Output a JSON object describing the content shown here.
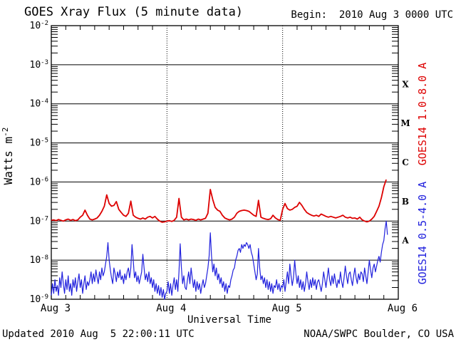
{
  "chart_data": {
    "type": "line",
    "title": "GOES Xray Flux (5 minute data)",
    "begin_label": "Begin:  2010 Aug 3 0000 UTC",
    "xlabel": "Universal Time",
    "ylabel": {
      "text": "Watts m",
      "exponent": "-2"
    },
    "grid": {
      "horizontal": "solid-per-decade",
      "vertical": "dotted-per-day"
    },
    "x_axis": {
      "start_hour": 0,
      "end_hour": 72,
      "tick_hours": [
        0,
        24,
        48,
        72
      ],
      "tick_labels": [
        "Aug 3",
        "Aug 4",
        "Aug 5",
        "Aug 6"
      ],
      "minor_tick_step_hours": 3,
      "day_gridline_hours": [
        24,
        48
      ]
    },
    "y_axis": {
      "base_label": "10",
      "log_min_exp": -9,
      "log_max_exp": -2,
      "tick_exponents": [
        -2,
        -3,
        -4,
        -5,
        -6,
        -7,
        -8,
        -9
      ]
    },
    "flare_class_labels": [
      {
        "label": "X",
        "band_exp": [
          -4,
          -3
        ]
      },
      {
        "label": "M",
        "band_exp": [
          -5,
          -4
        ]
      },
      {
        "label": "C",
        "band_exp": [
          -6,
          -5
        ]
      },
      {
        "label": "B",
        "band_exp": [
          -7,
          -6
        ]
      },
      {
        "label": "A",
        "band_exp": [
          -8,
          -7
        ]
      }
    ],
    "series": [
      {
        "name": "GOES14 1.0-8.0 A",
        "color": "#dd0000",
        "stroke_width": 1.8,
        "t_start_hours": 0,
        "t_step_hours": 0.5,
        "values_are": "log10(Watts m^-2)",
        "log10_flux": [
          -6.98,
          -6.97,
          -6.99,
          -6.96,
          -6.98,
          -7.0,
          -6.97,
          -6.95,
          -6.98,
          -6.96,
          -6.99,
          -6.97,
          -6.9,
          -6.85,
          -6.72,
          -6.85,
          -6.95,
          -6.97,
          -6.95,
          -6.92,
          -6.85,
          -6.75,
          -6.62,
          -6.33,
          -6.55,
          -6.62,
          -6.6,
          -6.5,
          -6.7,
          -6.78,
          -6.85,
          -6.88,
          -6.8,
          -6.49,
          -6.85,
          -6.9,
          -6.93,
          -6.95,
          -6.92,
          -6.95,
          -6.9,
          -6.88,
          -6.92,
          -6.88,
          -6.95,
          -7.0,
          -7.03,
          -7.02,
          -7.0,
          -6.99,
          -7.01,
          -6.98,
          -6.9,
          -6.42,
          -6.9,
          -6.97,
          -6.95,
          -6.97,
          -6.95,
          -6.96,
          -6.98,
          -6.95,
          -6.97,
          -6.95,
          -6.93,
          -6.8,
          -6.19,
          -6.45,
          -6.65,
          -6.72,
          -6.75,
          -6.85,
          -6.92,
          -6.95,
          -6.97,
          -6.95,
          -6.9,
          -6.8,
          -6.75,
          -6.73,
          -6.72,
          -6.73,
          -6.75,
          -6.8,
          -6.85,
          -6.88,
          -6.47,
          -6.9,
          -6.93,
          -6.95,
          -6.96,
          -6.94,
          -6.85,
          -6.92,
          -6.96,
          -6.98,
          -6.7,
          -6.55,
          -6.68,
          -6.72,
          -6.7,
          -6.65,
          -6.62,
          -6.52,
          -6.6,
          -6.7,
          -6.78,
          -6.82,
          -6.85,
          -6.87,
          -6.85,
          -6.88,
          -6.82,
          -6.85,
          -6.88,
          -6.9,
          -6.88,
          -6.9,
          -6.92,
          -6.9,
          -6.88,
          -6.85,
          -6.9,
          -6.92,
          -6.9,
          -6.93,
          -6.92,
          -6.95,
          -6.9,
          -6.97,
          -7.0,
          -7.02,
          -7.0,
          -6.95,
          -6.88,
          -6.75,
          -6.62,
          -6.4,
          -6.12,
          -5.94
        ]
      },
      {
        "name": "GOES14 0.5-4.0 A",
        "color": "#2121dd",
        "stroke_width": 1.2,
        "t_start_hours": 0,
        "t_step_hours": 0.25,
        "values_are": "log10(Watts m^-2)",
        "log10_flux": [
          -8.9,
          -8.6,
          -8.85,
          -8.5,
          -8.8,
          -8.65,
          -8.9,
          -8.45,
          -8.7,
          -8.3,
          -8.6,
          -8.85,
          -8.5,
          -8.75,
          -8.4,
          -8.8,
          -8.6,
          -8.9,
          -8.5,
          -8.7,
          -8.45,
          -8.8,
          -8.55,
          -8.35,
          -8.7,
          -8.5,
          -8.85,
          -8.6,
          -8.4,
          -8.75,
          -8.55,
          -8.65,
          -8.5,
          -8.3,
          -8.6,
          -8.35,
          -8.55,
          -8.25,
          -8.45,
          -8.6,
          -8.3,
          -8.5,
          -8.2,
          -8.4,
          -8.3,
          -8.1,
          -7.9,
          -7.55,
          -8.0,
          -8.25,
          -8.45,
          -8.6,
          -8.2,
          -8.35,
          -8.55,
          -8.3,
          -8.45,
          -8.25,
          -8.5,
          -8.4,
          -8.6,
          -8.35,
          -8.5,
          -8.3,
          -8.2,
          -8.45,
          -8.2,
          -7.6,
          -8.0,
          -8.45,
          -8.3,
          -8.55,
          -8.4,
          -8.6,
          -8.45,
          -8.3,
          -7.85,
          -8.2,
          -8.5,
          -8.35,
          -8.55,
          -8.3,
          -8.6,
          -8.45,
          -8.7,
          -8.5,
          -8.8,
          -8.6,
          -8.85,
          -8.65,
          -8.9,
          -8.7,
          -8.95,
          -8.75,
          -9.0,
          -8.85,
          -8.8,
          -8.55,
          -8.85,
          -8.6,
          -8.9,
          -8.65,
          -8.45,
          -8.75,
          -8.5,
          -8.8,
          -8.3,
          -7.58,
          -8.2,
          -8.6,
          -8.4,
          -8.7,
          -8.75,
          -8.5,
          -8.3,
          -8.6,
          -8.2,
          -8.45,
          -8.7,
          -8.5,
          -8.8,
          -8.55,
          -8.75,
          -8.6,
          -8.85,
          -8.65,
          -8.5,
          -8.7,
          -8.6,
          -8.4,
          -8.2,
          -7.9,
          -7.3,
          -7.9,
          -8.3,
          -8.1,
          -8.4,
          -8.2,
          -8.5,
          -8.35,
          -8.6,
          -8.45,
          -8.7,
          -8.55,
          -8.8,
          -8.6,
          -8.85,
          -8.65,
          -8.7,
          -8.5,
          -8.4,
          -8.25,
          -8.2,
          -8.0,
          -7.9,
          -7.75,
          -7.7,
          -7.8,
          -7.6,
          -7.7,
          -7.6,
          -7.65,
          -7.55,
          -7.6,
          -7.7,
          -7.6,
          -7.8,
          -7.9,
          -8.1,
          -8.3,
          -8.5,
          -8.35,
          -7.7,
          -8.2,
          -8.5,
          -8.4,
          -8.6,
          -8.45,
          -8.7,
          -8.5,
          -8.75,
          -8.55,
          -8.8,
          -8.6,
          -8.85,
          -8.65,
          -8.7,
          -8.5,
          -8.75,
          -8.6,
          -8.8,
          -8.65,
          -8.7,
          -8.5,
          -8.8,
          -8.55,
          -8.3,
          -8.6,
          -8.1,
          -8.4,
          -8.65,
          -8.45,
          -8.0,
          -8.35,
          -8.6,
          -8.4,
          -8.7,
          -8.5,
          -8.75,
          -8.55,
          -8.8,
          -8.6,
          -8.3,
          -8.55,
          -8.75,
          -8.5,
          -8.7,
          -8.45,
          -8.65,
          -8.5,
          -8.75,
          -8.55,
          -8.5,
          -8.65,
          -8.8,
          -8.6,
          -8.3,
          -8.5,
          -8.7,
          -8.45,
          -8.2,
          -8.5,
          -8.65,
          -8.4,
          -8.6,
          -8.35,
          -8.55,
          -8.7,
          -8.5,
          -8.6,
          -8.3,
          -8.55,
          -8.7,
          -8.45,
          -8.15,
          -8.4,
          -8.6,
          -8.35,
          -8.3,
          -8.5,
          -8.65,
          -8.4,
          -8.2,
          -8.45,
          -8.6,
          -8.35,
          -8.5,
          -8.3,
          -8.35,
          -8.55,
          -8.2,
          -8.4,
          -8.6,
          -8.3,
          -8.0,
          -8.25,
          -8.45,
          -8.2,
          -8.1,
          -8.3,
          -8.15,
          -8.0,
          -7.9,
          -8.05,
          -7.8,
          -7.6,
          -7.5,
          -7.2,
          -7.0,
          -7.35
        ]
      }
    ],
    "footer": {
      "updated": "Updated 2010 Aug  5 22:00:11 UTC",
      "source": "NOAA/SWPC Boulder, CO USA"
    }
  }
}
